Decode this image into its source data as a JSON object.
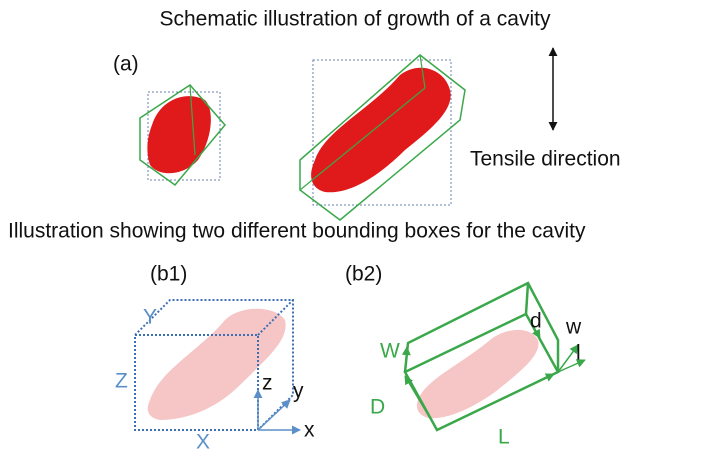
{
  "title": "Schematic illustration of growth of a cavity",
  "panel_a": {
    "label": "(a)",
    "direction_label": "Tensile direction"
  },
  "subtitle": "Illustration showing two  different bounding boxes for the cavity",
  "panel_b1": {
    "label": "(b1)",
    "axes": {
      "Y": "Y",
      "Z": "Z",
      "X": "X",
      "z": "z",
      "y": "y",
      "x": "x"
    }
  },
  "panel_b2": {
    "label": "(b2)",
    "axes": {
      "W": "W",
      "D": "D",
      "L": "L",
      "d": "d",
      "w": "w",
      "l": "l"
    }
  }
}
